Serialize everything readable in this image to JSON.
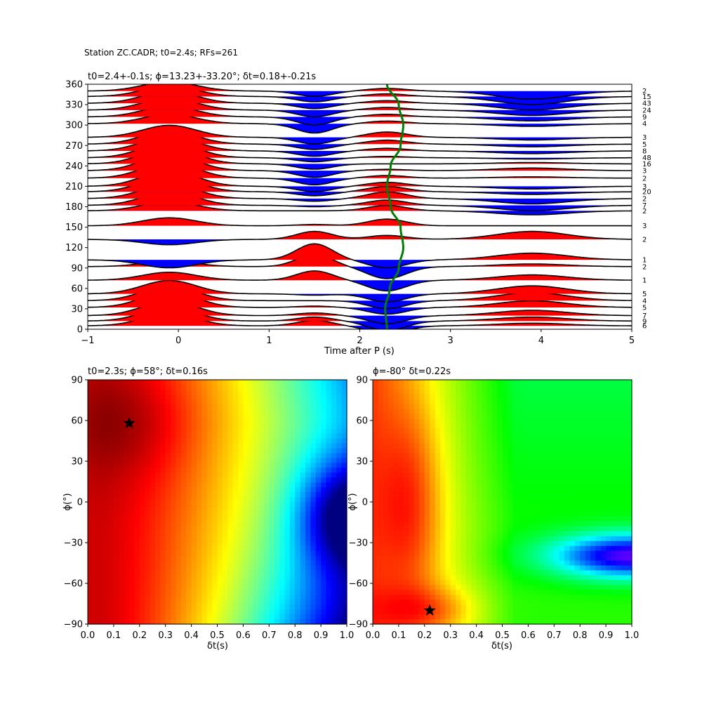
{
  "figure": {
    "suptitle": "Station ZC.CADR; t0=2.4s; RFs=261"
  },
  "chart_data": [
    {
      "type": "line",
      "title": "t0=2.4+-0.1s; ϕ=13.23+-33.20°; δt=0.18+-0.21s",
      "xlabel": "Time after P (s)",
      "ylabel": "",
      "xlim": [
        -1,
        5
      ],
      "ylim": [
        0,
        360
      ],
      "x_ticks": [
        "−1",
        "0",
        "1",
        "2",
        "3",
        "4",
        "5"
      ],
      "y_ticks": [
        "0",
        "30",
        "60",
        "90",
        "120",
        "150",
        "180",
        "210",
        "240",
        "270",
        "300",
        "330",
        "360"
      ],
      "fill_positive_color": "#ff0000",
      "fill_negative_color": "#0000ff",
      "t0_curve_color": "#008000",
      "t0_curve": {
        "baz": [
          0,
          30,
          60,
          90,
          120,
          150,
          180,
          210,
          240,
          270,
          300,
          330,
          360
        ],
        "time": [
          2.3,
          2.28,
          2.33,
          2.43,
          2.48,
          2.45,
          2.34,
          2.3,
          2.34,
          2.45,
          2.48,
          2.43,
          2.3
        ]
      },
      "series": [
        {
          "baz": 5,
          "count": "6",
          "amps": [
            0.45,
            0.2,
            -0.3,
            0.1
          ]
        },
        {
          "baz": 12,
          "count": "9",
          "amps": [
            0.5,
            0.15,
            -0.35,
            0.15
          ]
        },
        {
          "baz": 20,
          "count": "7",
          "amps": [
            0.55,
            0.1,
            -0.3,
            0.2
          ]
        },
        {
          "baz": 32,
          "count": "5",
          "amps": [
            0.6,
            0.05,
            -0.25,
            0.25
          ]
        },
        {
          "baz": 42,
          "count": "4",
          "amps": [
            0.55,
            0.0,
            -0.3,
            0.3
          ]
        },
        {
          "baz": 52,
          "count": "5",
          "amps": [
            0.5,
            -0.05,
            -0.3,
            0.3
          ]
        },
        {
          "baz": 72,
          "count": "1",
          "amps": [
            0.3,
            0.35,
            -0.4,
            0.2
          ]
        },
        {
          "baz": 92,
          "count": "2",
          "amps": [
            0.2,
            0.45,
            -0.45,
            0.1
          ]
        },
        {
          "baz": 102,
          "count": "1",
          "amps": [
            -0.3,
            0.6,
            -0.3,
            0.25
          ]
        },
        {
          "baz": 132,
          "count": "2",
          "amps": [
            -0.2,
            0.3,
            0.15,
            0.3
          ]
        },
        {
          "baz": 152,
          "count": "3",
          "amps": [
            0.3,
            0.05,
            0.25,
            0.0
          ]
        },
        {
          "baz": 174,
          "count": "2",
          "amps": [
            0.35,
            0.0,
            0.2,
            -0.15
          ]
        },
        {
          "baz": 182,
          "count": "7",
          "amps": [
            0.5,
            -0.05,
            0.2,
            -0.2
          ]
        },
        {
          "baz": 192,
          "count": "2",
          "amps": [
            0.55,
            -0.1,
            0.25,
            -0.2
          ]
        },
        {
          "baz": 202,
          "count": "20",
          "amps": [
            0.6,
            -0.15,
            0.2,
            -0.1
          ]
        },
        {
          "baz": 210,
          "count": "3",
          "amps": [
            0.6,
            -0.2,
            0.15,
            -0.1
          ]
        },
        {
          "baz": 222,
          "count": "2",
          "amps": [
            0.6,
            -0.25,
            0.1,
            0.05
          ]
        },
        {
          "baz": 233,
          "count": "3",
          "amps": [
            0.6,
            -0.25,
            0.05,
            0.1
          ]
        },
        {
          "baz": 243,
          "count": "16",
          "amps": [
            0.6,
            -0.2,
            0.0,
            0.05
          ]
        },
        {
          "baz": 252,
          "count": "48",
          "amps": [
            0.6,
            -0.15,
            0.05,
            -0.05
          ]
        },
        {
          "baz": 262,
          "count": "8",
          "amps": [
            0.55,
            -0.2,
            0.1,
            -0.1
          ]
        },
        {
          "baz": 272,
          "count": "5",
          "amps": [
            0.5,
            -0.2,
            0.15,
            -0.1
          ]
        },
        {
          "baz": 282,
          "count": "3",
          "amps": [
            0.45,
            -0.25,
            0.2,
            -0.1
          ]
        },
        {
          "baz": 302,
          "count": "4",
          "amps": [
            0.35,
            -0.35,
            0.1,
            -0.1
          ]
        },
        {
          "baz": 312,
          "count": "9",
          "amps": [
            0.4,
            -0.3,
            0.1,
            -0.15
          ]
        },
        {
          "baz": 322,
          "count": "24",
          "amps": [
            0.45,
            -0.25,
            0.1,
            -0.2
          ]
        },
        {
          "baz": 332,
          "count": "43",
          "amps": [
            0.45,
            -0.2,
            0.1,
            -0.25
          ]
        },
        {
          "baz": 342,
          "count": "15",
          "amps": [
            0.4,
            -0.2,
            0.1,
            -0.3
          ]
        },
        {
          "baz": 350,
          "count": "2",
          "amps": [
            0.35,
            -0.2,
            0.1,
            -0.3
          ]
        }
      ]
    },
    {
      "type": "heatmap",
      "title": "t0=2.3s; ϕ=58°; δt=0.16s",
      "xlabel": "δt(s)",
      "ylabel": "ϕ(°)",
      "xlim": [
        0.0,
        1.0
      ],
      "ylim": [
        -90,
        90
      ],
      "x_ticks": [
        "0.0",
        "0.1",
        "0.2",
        "0.3",
        "0.4",
        "0.5",
        "0.6",
        "0.7",
        "0.8",
        "0.9",
        "1.0"
      ],
      "y_ticks": [
        "−90",
        "−60",
        "−30",
        "0",
        "30",
        "60",
        "90"
      ],
      "colormap": "jet",
      "best": {
        "dt": 0.16,
        "phi": 58
      }
    },
    {
      "type": "heatmap",
      "title": "ϕ=-80° δt=0.22s",
      "xlabel": "δt(s)",
      "ylabel": "ϕ(°)",
      "xlim": [
        0.0,
        1.0
      ],
      "ylim": [
        -90,
        90
      ],
      "x_ticks": [
        "0.0",
        "0.1",
        "0.2",
        "0.3",
        "0.4",
        "0.5",
        "0.6",
        "0.7",
        "0.8",
        "0.9",
        "1.0"
      ],
      "y_ticks": [
        "−90",
        "−60",
        "−30",
        "0",
        "30",
        "60",
        "90"
      ],
      "colormap": "hsv",
      "best": {
        "dt": 0.22,
        "phi": -80
      }
    }
  ]
}
